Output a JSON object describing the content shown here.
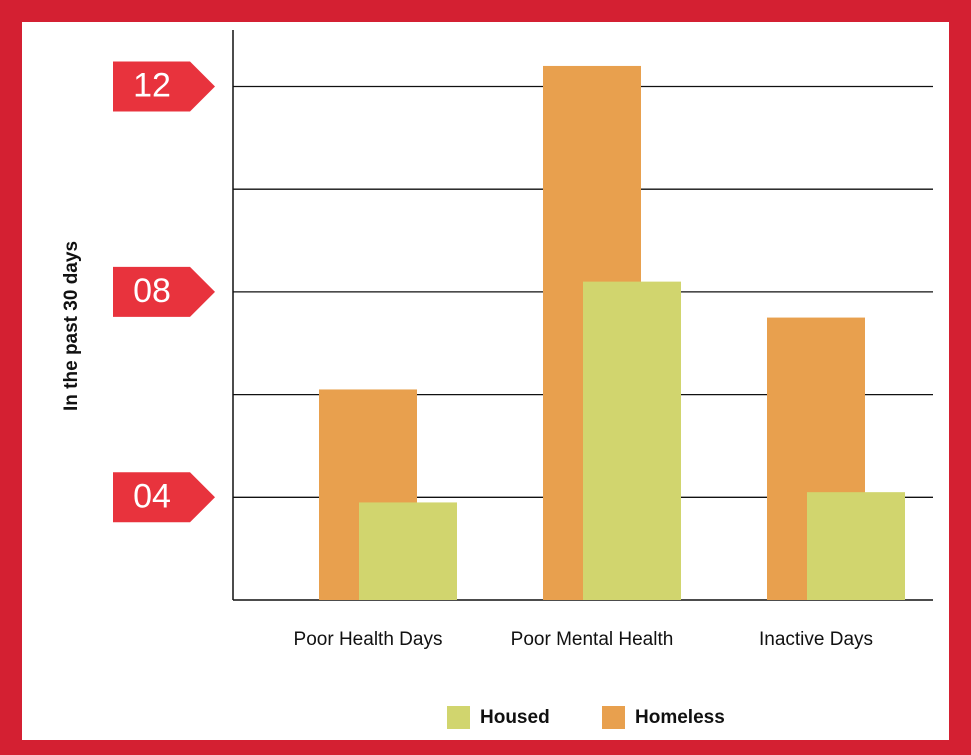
{
  "chart_data": {
    "type": "bar",
    "y_label": "In the past 30 days",
    "categories": [
      "Poor Health Days",
      "Poor Mental Health",
      "Inactive Days"
    ],
    "series": [
      {
        "name": "Housed",
        "color": "#d1d56e",
        "values": [
          3.9,
          8.2,
          4.1
        ]
      },
      {
        "name": "Homeless",
        "color": "#e8a04e",
        "values": [
          6.1,
          12.4,
          7.5
        ]
      }
    ],
    "ylim": [
      2,
      13.1
    ],
    "yticks": [
      {
        "value": 4,
        "label": "04"
      },
      {
        "value": 8,
        "label": "08"
      },
      {
        "value": 12,
        "label": "12"
      }
    ],
    "yminor_ticks": [
      6,
      10
    ],
    "grid": true,
    "legend": "bottom"
  }
}
